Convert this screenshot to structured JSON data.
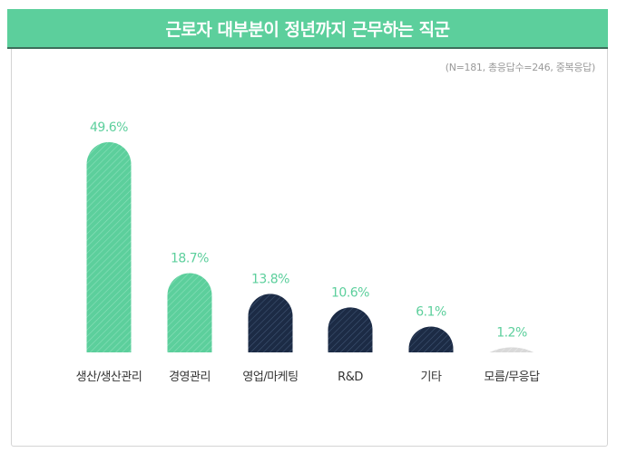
{
  "title": "근로자 대부분이 정년까지 근무하는 직군",
  "note": "(N=181, 총응답수=246, 중복응답)",
  "colors": {
    "green": "#5ccf9c",
    "navy": "#1c2b45",
    "gray": "#d9d9d9",
    "value_text": "#5ccf9c",
    "category_text": "#333333"
  },
  "chart_data": {
    "type": "bar",
    "categories": [
      "생산/생산관리",
      "경영관리",
      "영업/마케팅",
      "R&D",
      "기타",
      "모름/무응답"
    ],
    "values": [
      49.6,
      18.7,
      13.8,
      10.6,
      6.1,
      1.2
    ],
    "value_labels": [
      "49.6%",
      "18.7%",
      "13.8%",
      "10.6%",
      "6.1%",
      "1.2%"
    ],
    "bar_colors": [
      "green",
      "green",
      "navy",
      "navy",
      "navy",
      "gray"
    ],
    "ylabel": "",
    "xlabel": "",
    "ylim": [
      0,
      50
    ],
    "unit": "%",
    "grid": false,
    "legend": "none"
  }
}
